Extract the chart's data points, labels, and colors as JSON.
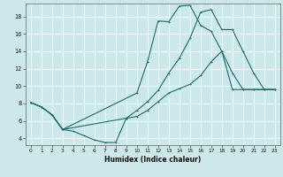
{
  "title": "",
  "xlabel": "Humidex (Indice chaleur)",
  "background_color": "#cce8ea",
  "line_color": "#1a6b6b",
  "grid_color": "#ffffff",
  "xlim": [
    -0.5,
    23.5
  ],
  "ylim": [
    3.2,
    19.5
  ],
  "xticks": [
    0,
    1,
    2,
    3,
    4,
    5,
    6,
    7,
    8,
    9,
    10,
    11,
    12,
    13,
    14,
    15,
    16,
    17,
    18,
    19,
    20,
    21,
    22,
    23
  ],
  "yticks": [
    4,
    6,
    8,
    10,
    12,
    14,
    16,
    18
  ],
  "line1_x": [
    0,
    1,
    2,
    3,
    10,
    11,
    12,
    13,
    14,
    15,
    16,
    17,
    18,
    19,
    20,
    21,
    22,
    23
  ],
  "line1_y": [
    8.1,
    7.6,
    6.7,
    5.0,
    9.2,
    12.8,
    17.5,
    17.4,
    19.2,
    19.3,
    17.0,
    16.3,
    14.0,
    11.5,
    9.6,
    9.6,
    9.6,
    9.6
  ],
  "line2_x": [
    0,
    1,
    2,
    3,
    4,
    5,
    6,
    7,
    8,
    9,
    10,
    11,
    12,
    13,
    14,
    15,
    16,
    17,
    18,
    19,
    20,
    21,
    22,
    23
  ],
  "line2_y": [
    8.1,
    7.6,
    6.7,
    5.0,
    4.8,
    4.3,
    3.8,
    3.5,
    3.5,
    6.3,
    6.5,
    7.2,
    8.2,
    9.2,
    9.7,
    10.2,
    11.2,
    12.8,
    14.0,
    9.6,
    9.6,
    9.6,
    9.6,
    9.6
  ],
  "line3_x": [
    0,
    1,
    2,
    3,
    9,
    10,
    11,
    12,
    13,
    14,
    15,
    16,
    17,
    18,
    19,
    20,
    21,
    22,
    23
  ],
  "line3_y": [
    8.1,
    7.6,
    6.7,
    5.0,
    6.3,
    7.2,
    8.2,
    9.5,
    11.5,
    13.2,
    15.5,
    18.5,
    18.8,
    16.5,
    16.5,
    14.0,
    11.5,
    9.6,
    9.6
  ]
}
